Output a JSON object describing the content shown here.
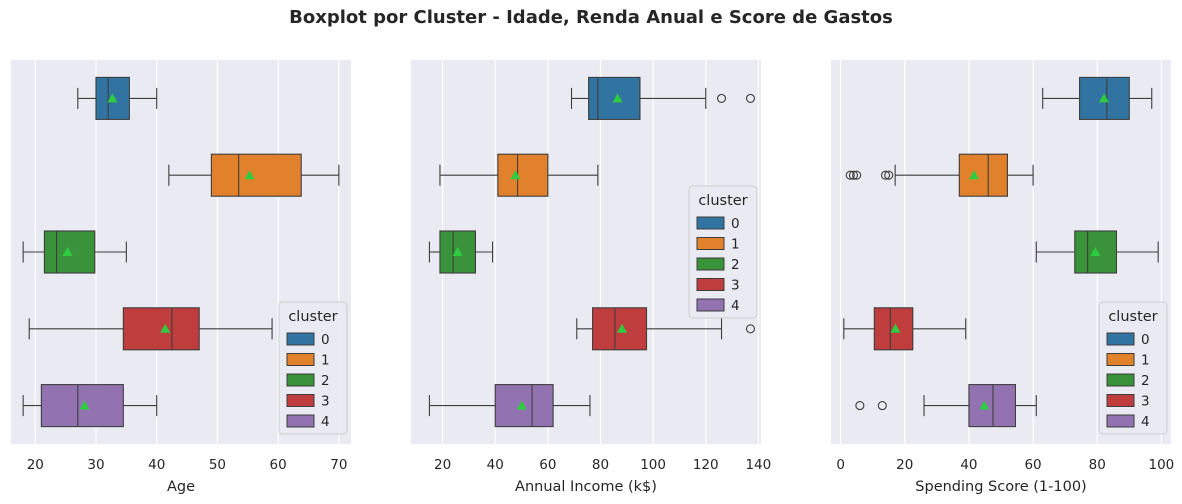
{
  "title": "Boxplot por Cluster - Idade, Renda Anual e Score de Gastos",
  "colors": {
    "background": "#eaeaf2",
    "grid": "#ffffff",
    "clusters": [
      "#3274a1",
      "#e1812c",
      "#3a923a",
      "#c03d3e",
      "#9372b2"
    ],
    "mean_marker": "#2ecc40",
    "line": "#3d3d3d"
  },
  "chart_data": [
    {
      "type": "boxplot",
      "orientation": "horizontal",
      "xlabel": "Age",
      "xlim": [
        16,
        72
      ],
      "ticks": [
        20,
        30,
        40,
        50,
        60,
        70
      ],
      "grid": true,
      "legend": {
        "title": "cluster",
        "placement": "bottom-right",
        "entries": [
          "0",
          "1",
          "2",
          "3",
          "4"
        ]
      },
      "boxes": [
        {
          "cluster": "0",
          "whisker_low": 27,
          "q1": 30,
          "median": 32,
          "q3": 35.5,
          "whisker_high": 40,
          "mean": 32.7,
          "outliers": []
        },
        {
          "cluster": "1",
          "whisker_low": 42,
          "q1": 49,
          "median": 53.5,
          "q3": 63.8,
          "whisker_high": 70,
          "mean": 55.3,
          "outliers": []
        },
        {
          "cluster": "2",
          "whisker_low": 18,
          "q1": 21.5,
          "median": 23.5,
          "q3": 29.8,
          "whisker_high": 35,
          "mean": 25.3,
          "outliers": []
        },
        {
          "cluster": "3",
          "whisker_low": 19,
          "q1": 34.5,
          "median": 42.5,
          "q3": 47,
          "whisker_high": 59,
          "mean": 41.4,
          "outliers": []
        },
        {
          "cluster": "4",
          "whisker_low": 18,
          "q1": 21,
          "median": 27,
          "q3": 34.5,
          "whisker_high": 40,
          "mean": 28.1,
          "outliers": []
        }
      ]
    },
    {
      "type": "boxplot",
      "orientation": "horizontal",
      "xlabel": "Annual Income (k$)",
      "xlim": [
        8,
        141
      ],
      "ticks": [
        20,
        40,
        60,
        80,
        100,
        120,
        140
      ],
      "grid": true,
      "legend": {
        "title": "cluster",
        "placement": "center-right",
        "entries": [
          "0",
          "1",
          "2",
          "3",
          "4"
        ]
      },
      "boxes": [
        {
          "cluster": "0",
          "whisker_low": 69,
          "q1": 75.5,
          "median": 79,
          "q3": 95,
          "whisker_high": 120,
          "mean": 86.5,
          "outliers": [
            126,
            137
          ]
        },
        {
          "cluster": "1",
          "whisker_low": 19,
          "q1": 41,
          "median": 48.5,
          "q3": 60,
          "whisker_high": 79,
          "mean": 47.7,
          "outliers": []
        },
        {
          "cluster": "2",
          "whisker_low": 15,
          "q1": 19,
          "median": 24,
          "q3": 32.5,
          "whisker_high": 39,
          "mean": 25.7,
          "outliers": []
        },
        {
          "cluster": "3",
          "whisker_low": 71,
          "q1": 77,
          "median": 85.5,
          "q3": 97.5,
          "whisker_high": 126,
          "mean": 88.2,
          "outliers": [
            137
          ]
        },
        {
          "cluster": "4",
          "whisker_low": 15,
          "q1": 40,
          "median": 54,
          "q3": 62,
          "whisker_high": 76,
          "mean": 50.1,
          "outliers": []
        }
      ]
    },
    {
      "type": "boxplot",
      "orientation": "horizontal",
      "xlabel": "Spending Score (1-100)",
      "xlim": [
        -3,
        103
      ],
      "ticks": [
        0,
        20,
        40,
        60,
        80,
        100
      ],
      "grid": true,
      "legend": {
        "title": "cluster",
        "placement": "bottom-right",
        "entries": [
          "0",
          "1",
          "2",
          "3",
          "4"
        ]
      },
      "boxes": [
        {
          "cluster": "0",
          "whisker_low": 63,
          "q1": 74.5,
          "median": 83,
          "q3": 90,
          "whisker_high": 97,
          "mean": 82.1,
          "outliers": []
        },
        {
          "cluster": "1",
          "whisker_low": 17,
          "q1": 37,
          "median": 46,
          "q3": 52,
          "whisker_high": 60,
          "mean": 41.6,
          "outliers": [
            3,
            4,
            5,
            14,
            15
          ]
        },
        {
          "cluster": "2",
          "whisker_low": 61,
          "q1": 73,
          "median": 77,
          "q3": 86,
          "whisker_high": 99,
          "mean": 79.4,
          "outliers": []
        },
        {
          "cluster": "3",
          "whisker_low": 1,
          "q1": 10.5,
          "median": 15.5,
          "q3": 22.5,
          "whisker_high": 39,
          "mean": 17.1,
          "outliers": []
        },
        {
          "cluster": "4",
          "whisker_low": 26,
          "q1": 40,
          "median": 47.5,
          "q3": 54.5,
          "whisker_high": 61,
          "mean": 44.8,
          "outliers": [
            6,
            13
          ]
        }
      ]
    }
  ]
}
